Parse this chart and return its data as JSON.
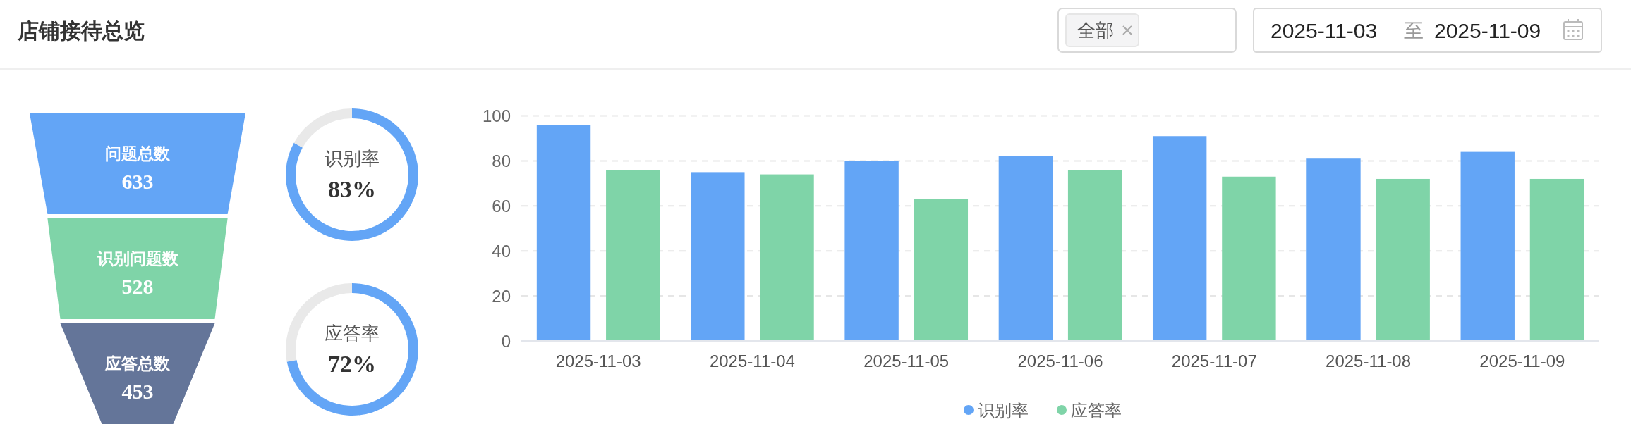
{
  "chart_data": [
    {
      "type": "other",
      "title": "店铺接待总览",
      "annotations": [
        "全部",
        "2025-11-03",
        "至",
        "2025-11-09"
      ]
    },
    {
      "type": "other",
      "categories": [
        "问题总数",
        "识别问题数",
        "应答总数"
      ],
      "values": [
        633,
        528,
        453
      ],
      "colors": [
        "#63a5f6",
        "#7fd4a8",
        "#647599"
      ],
      "data_labels": true
    },
    {
      "type": "donut",
      "title": "识别率",
      "categories": [
        null,
        null
      ],
      "values": [
        83,
        17
      ],
      "colors": [
        "#63a5f6",
        "#e9e9e9"
      ],
      "value_labels": [
        "83%",
        null
      ]
    },
    {
      "type": "donut",
      "title": "应答率",
      "categories": [
        null,
        null
      ],
      "values": [
        72,
        28
      ],
      "colors": [
        "#63a5f6",
        "#e9e9e9"
      ],
      "value_labels": [
        "72%",
        null
      ]
    },
    {
      "type": "bar",
      "categories": [
        "2025-11-03",
        "2025-11-04",
        "2025-11-05",
        "2025-11-06",
        "2025-11-07",
        "2025-11-08",
        "2025-11-09"
      ],
      "series": [
        {
          "name": "识别率",
          "color": "#63a5f6",
          "values": [
            96,
            75,
            80,
            82,
            91,
            81,
            84
          ]
        },
        {
          "name": "应答率",
          "color": "#7fd4a8",
          "values": [
            76,
            74,
            63,
            76,
            73,
            72,
            72
          ]
        }
      ],
      "ylim": [
        0,
        100
      ],
      "yticks": [
        0,
        20,
        40,
        60,
        80,
        100
      ],
      "grid": "y",
      "legend": "bottom"
    }
  ]
}
